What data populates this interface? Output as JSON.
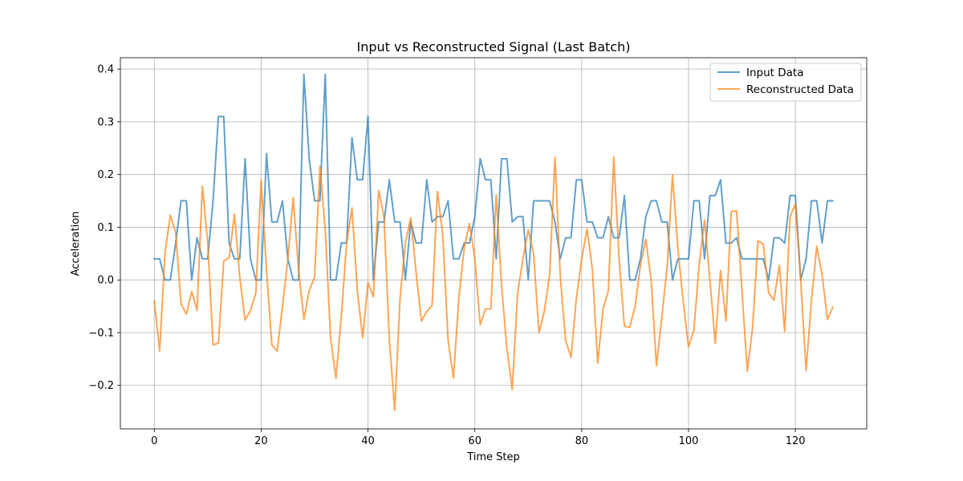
{
  "chart_data": {
    "type": "line",
    "title": "Input vs Reconstructed Signal (Last Batch)",
    "xlabel": "Time Step",
    "ylabel": "Acceleration",
    "xlim": [
      -6.35,
      133.35
    ],
    "ylim": [
      -0.2825,
      0.4215
    ],
    "x_ticks": [
      0,
      20,
      40,
      60,
      80,
      100,
      120
    ],
    "y_ticks": [
      -0.2,
      -0.1,
      0.0,
      0.1,
      0.2,
      0.3,
      0.4
    ],
    "y_tick_labels": [
      "−0.2",
      "−0.1",
      "0.0",
      "0.1",
      "0.2",
      "0.3",
      "0.4"
    ],
    "grid": true,
    "legend_position": "top-right",
    "x": [
      0,
      1,
      2,
      3,
      4,
      5,
      6,
      7,
      8,
      9,
      10,
      11,
      12,
      13,
      14,
      15,
      16,
      17,
      18,
      19,
      20,
      21,
      22,
      23,
      24,
      25,
      26,
      27,
      28,
      29,
      30,
      31,
      32,
      33,
      34,
      35,
      36,
      37,
      38,
      39,
      40,
      41,
      42,
      43,
      44,
      45,
      46,
      47,
      48,
      49,
      50,
      51,
      52,
      53,
      54,
      55,
      56,
      57,
      58,
      59,
      60,
      61,
      62,
      63,
      64,
      65,
      66,
      67,
      68,
      69,
      70,
      71,
      72,
      73,
      74,
      75,
      76,
      77,
      78,
      79,
      80,
      81,
      82,
      83,
      84,
      85,
      86,
      87,
      88,
      89,
      90,
      91,
      92,
      93,
      94,
      95,
      96,
      97,
      98,
      99,
      100,
      101,
      102,
      103,
      104,
      105,
      106,
      107,
      108,
      109,
      110,
      111,
      112,
      113,
      114,
      115,
      116,
      117,
      118,
      119,
      120,
      121,
      122,
      123,
      124,
      125,
      126,
      127
    ],
    "series": [
      {
        "name": "Input Data",
        "color": "#1f77b4",
        "values": [
          0.04,
          0.04,
          0.0,
          0.0,
          0.07,
          0.15,
          0.15,
          0.0,
          0.08,
          0.04,
          0.04,
          0.15,
          0.31,
          0.31,
          0.07,
          0.04,
          0.04,
          0.23,
          0.04,
          0.0,
          0.0,
          0.24,
          0.11,
          0.11,
          0.15,
          0.04,
          0.0,
          0.0,
          0.39,
          0.23,
          0.15,
          0.15,
          0.39,
          0.0,
          0.0,
          0.07,
          0.07,
          0.27,
          0.19,
          0.19,
          0.31,
          0.0,
          0.11,
          0.11,
          0.19,
          0.11,
          0.11,
          0.0,
          0.11,
          0.07,
          0.07,
          0.19,
          0.11,
          0.12,
          0.12,
          0.15,
          0.04,
          0.04,
          0.07,
          0.07,
          0.12,
          0.23,
          0.19,
          0.19,
          0.04,
          0.23,
          0.23,
          0.11,
          0.12,
          0.12,
          0.0,
          0.15,
          0.15,
          0.15,
          0.15,
          0.11,
          0.04,
          0.08,
          0.08,
          0.19,
          0.19,
          0.11,
          0.11,
          0.08,
          0.08,
          0.12,
          0.08,
          0.08,
          0.16,
          0.0,
          0.0,
          0.04,
          0.12,
          0.15,
          0.15,
          0.11,
          0.11,
          0.0,
          0.04,
          0.04,
          0.04,
          0.15,
          0.15,
          0.04,
          0.16,
          0.16,
          0.19,
          0.07,
          0.07,
          0.08,
          0.04,
          0.04,
          0.04,
          0.04,
          0.04,
          0.0,
          0.08,
          0.08,
          0.07,
          0.16,
          0.16,
          0.0,
          0.04,
          0.15,
          0.15,
          0.07,
          0.15,
          0.15
        ]
      },
      {
        "name": "Reconstructed Data",
        "color": "#ff7f0e",
        "values": [
          -0.04,
          -0.135,
          0.05,
          0.123,
          0.09,
          -0.045,
          -0.065,
          -0.022,
          -0.058,
          0.178,
          0.07,
          -0.123,
          -0.12,
          0.036,
          0.042,
          0.125,
          0.005,
          -0.076,
          -0.058,
          -0.025,
          0.19,
          0.02,
          -0.123,
          -0.135,
          -0.05,
          0.04,
          0.156,
          0.02,
          -0.075,
          -0.02,
          0.005,
          0.215,
          0.095,
          -0.11,
          -0.187,
          -0.07,
          0.07,
          0.137,
          -0.02,
          -0.11,
          -0.005,
          -0.032,
          0.17,
          0.12,
          -0.115,
          -0.247,
          -0.035,
          0.07,
          0.118,
          0.015,
          -0.078,
          -0.06,
          -0.048,
          0.168,
          0.085,
          -0.115,
          -0.186,
          -0.035,
          0.06,
          0.107,
          0.04,
          -0.085,
          -0.055,
          -0.055,
          0.162,
          -0.01,
          -0.13,
          -0.208,
          -0.025,
          0.04,
          0.095,
          0.05,
          -0.1,
          -0.06,
          0.01,
          0.233,
          0.005,
          -0.115,
          -0.147,
          -0.035,
          0.04,
          0.097,
          0.02,
          -0.158,
          -0.055,
          -0.02,
          0.233,
          0.04,
          -0.088,
          -0.09,
          -0.05,
          0.028,
          0.077,
          0.0,
          -0.163,
          -0.07,
          0.025,
          0.199,
          0.06,
          -0.04,
          -0.127,
          -0.095,
          0.03,
          0.114,
          0.0,
          -0.12,
          0.018,
          -0.078,
          0.13,
          0.131,
          -0.02,
          -0.173,
          -0.09,
          0.074,
          0.068,
          -0.025,
          -0.038,
          0.028,
          -0.098,
          0.12,
          0.144,
          0.0,
          -0.172,
          -0.04,
          0.064,
          0.01,
          -0.075,
          -0.052
        ]
      }
    ]
  }
}
